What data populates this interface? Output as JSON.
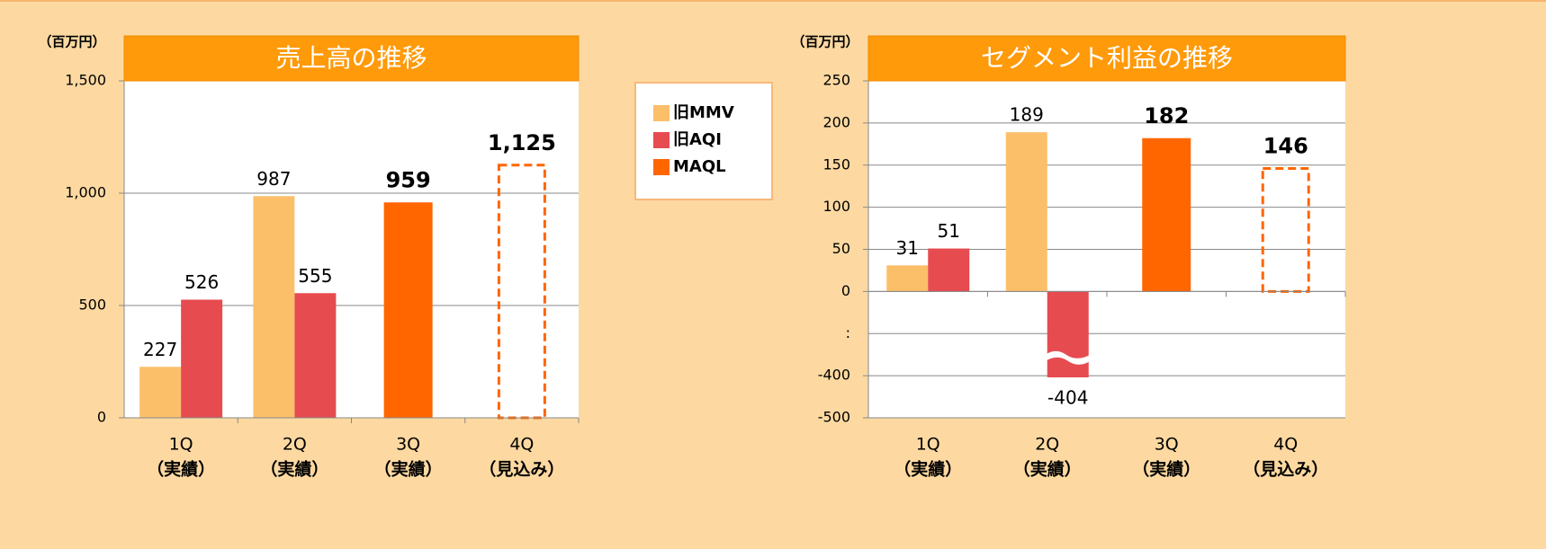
{
  "chart_data": [
    {
      "type": "bar",
      "title": "売上高の推移",
      "y_unit": "（百万円）",
      "categories": [
        "1Q",
        "2Q",
        "3Q",
        "4Q"
      ],
      "category_sublabels": [
        "（実績）",
        "（実績）",
        "（実績）",
        "（見込み）"
      ],
      "series": [
        {
          "name": "旧MMV",
          "color": "#fbbf6a",
          "values": [
            227,
            987,
            null,
            null
          ]
        },
        {
          "name": "旧AQI",
          "color": "#e64b50",
          "values": [
            526,
            555,
            null,
            null
          ]
        },
        {
          "name": "MAQL",
          "color": "#ff6600",
          "values": [
            null,
            null,
            959,
            1125
          ],
          "value_labels": [
            null,
            null,
            "959",
            "1,125"
          ],
          "bold_labels": true,
          "dashed": [
            false,
            false,
            false,
            true
          ]
        }
      ],
      "ylim": [
        0,
        1500
      ],
      "yticks": [
        0,
        500,
        {
          "value": 1000,
          "label": "1,000"
        },
        {
          "value": 1500,
          "label": "1,500"
        }
      ],
      "grid": true,
      "legend": "right"
    },
    {
      "type": "bar",
      "title": "セグメント利益の推移",
      "y_unit": "（百万円）",
      "categories": [
        "1Q",
        "2Q",
        "3Q",
        "4Q"
      ],
      "category_sublabels": [
        "（実績）",
        "（実績）",
        "（実績）",
        "（見込み）"
      ],
      "series": [
        {
          "name": "旧MMV",
          "color": "#fbbf6a",
          "values": [
            31,
            189,
            null,
            null
          ]
        },
        {
          "name": "旧AQI",
          "color": "#e64b50",
          "values": [
            51,
            -404,
            null,
            null
          ]
        },
        {
          "name": "MAQL",
          "color": "#ff6600",
          "values": [
            null,
            null,
            182,
            146
          ],
          "bold_labels": true,
          "dashed": [
            false,
            false,
            false,
            true
          ]
        }
      ],
      "ylim": [
        -500,
        250
      ],
      "yticks": [
        -500,
        -400,
        0,
        50,
        100,
        150,
        200,
        250
      ],
      "y_break": {
        "between": [
          -400,
          0
        ],
        "label": ":"
      },
      "negative_label_color": "#ff0000",
      "grid": true
    }
  ]
}
